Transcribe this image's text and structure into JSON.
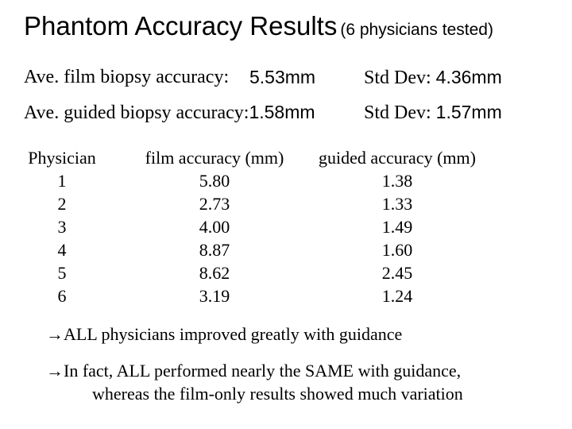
{
  "title": {
    "main": "Phantom Accuracy Results",
    "sub": "(6 physicians tested)"
  },
  "summary": {
    "film": {
      "label": "Ave. film biopsy accuracy:",
      "value": "5.53mm",
      "std_label": "Std Dev:",
      "std_value": "4.36mm"
    },
    "guided": {
      "label": "Ave. guided biopsy accuracy:",
      "value": "1.58mm",
      "std_label": "Std Dev:",
      "std_value": "1.57mm"
    }
  },
  "table": {
    "headers": [
      "Physician",
      "film accuracy (mm)",
      "guided accuracy (mm)"
    ],
    "physicians": [
      "1",
      "2",
      "3",
      "4",
      "5",
      "6"
    ],
    "film": [
      "5.80",
      "2.73",
      "4.00",
      "8.87",
      "8.62",
      "3.19"
    ],
    "guided": [
      "1.38",
      "1.33",
      "1.49",
      "1.60",
      "2.45",
      "1.24"
    ]
  },
  "notes": {
    "arrow": "→",
    "note1": "ALL physicians improved greatly with guidance",
    "note2_line1": "In fact, ALL performed nearly the SAME with guidance,",
    "note2_line2": "whereas the film-only results showed much variation"
  }
}
